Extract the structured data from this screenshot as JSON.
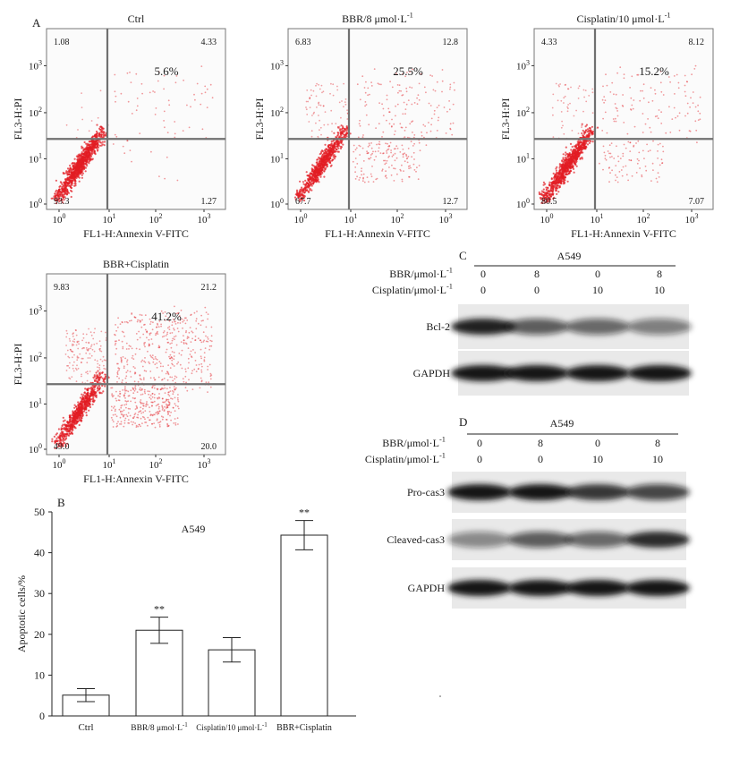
{
  "colors": {
    "dot": "#e21c24",
    "gate_line": "#707070",
    "plot_bg": "#fbfbfb",
    "band": "#141414",
    "blot_bg": "#e9e9e9"
  },
  "panel_a": {
    "label": "A",
    "plots": [
      {
        "title": "Ctrl",
        "title_sup": "",
        "q_ul": "1.08",
        "q_ur": "4.33",
        "q_ll": "93.3",
        "q_lr": "1.27",
        "percent": "5.6%",
        "xlabel": "FL1-H:Annexin V-FITC",
        "ylabel": "FL3-H:PI",
        "density": {
          "ll": 1000,
          "ur": 60,
          "ul": 10,
          "lr": 10
        }
      },
      {
        "title": "BBR/8 μmol·L",
        "title_sup": "-1",
        "q_ul": "6.83",
        "q_ur": "12.8",
        "q_ll": "67.7",
        "q_lr": "12.7",
        "percent": "25.5%",
        "xlabel": "FL1-H:Annexin V-FITC",
        "ylabel": "FL3-H:PI",
        "density": {
          "ll": 760,
          "ur": 150,
          "ul": 75,
          "lr": 140
        }
      },
      {
        "title": "Cisplatin/10 μmol·L",
        "title_sup": "-1",
        "q_ul": "4.33",
        "q_ur": "8.12",
        "q_ll": "80.5",
        "q_lr": "7.07",
        "percent": "15.2%",
        "xlabel": "FL1-H:Annexin V-FITC",
        "ylabel": "FL3-H:PI",
        "density": {
          "ll": 880,
          "ur": 120,
          "ul": 50,
          "lr": 80
        }
      },
      {
        "title": "BBR+Cisplatin",
        "title_sup": "",
        "q_ul": "9.83",
        "q_ur": "21.2",
        "q_ll": "49.0",
        "q_lr": "20.0",
        "percent": "41.2%",
        "xlabel": "FL1-H:Annexin V-FITC",
        "ylabel": "FL3-H:PI",
        "density": {
          "ll": 700,
          "ur": 420,
          "ul": 140,
          "lr": 300
        }
      }
    ],
    "x_ticks": [
      {
        "base": "10",
        "exp": "0"
      },
      {
        "base": "10",
        "exp": "1"
      },
      {
        "base": "10",
        "exp": "2"
      },
      {
        "base": "10",
        "exp": "3"
      }
    ],
    "y_ticks": [
      {
        "base": "10",
        "exp": "0"
      },
      {
        "base": "10",
        "exp": "1"
      },
      {
        "base": "10",
        "exp": "2"
      },
      {
        "base": "10",
        "exp": "3"
      }
    ]
  },
  "panel_c": {
    "label": "C",
    "cell_line": "A549",
    "row1_label": "BBR/μmol·L",
    "row1_sup": "-1",
    "row1_values": [
      "0",
      "8",
      "0",
      "8"
    ],
    "row2_label": "Cisplatin/μmol·L",
    "row2_sup": "-1",
    "row2_values": [
      "0",
      "0",
      "10",
      "10"
    ],
    "blots": [
      {
        "label": "Bcl-2",
        "intensities": [
          0.95,
          0.65,
          0.6,
          0.5
        ]
      },
      {
        "label": "GAPDH",
        "intensities": [
          1.0,
          1.0,
          1.0,
          1.0
        ]
      }
    ]
  },
  "panel_d": {
    "label": "D",
    "cell_line": "A549",
    "row1_label": "BBR/μmol·L",
    "row1_sup": "-1",
    "row1_values": [
      "0",
      "8",
      "0",
      "8"
    ],
    "row2_label": "Cisplatin/μmol·L",
    "row2_sup": "-1",
    "row2_values": [
      "0",
      "0",
      "10",
      "10"
    ],
    "blots": [
      {
        "label": "Pro-cas3",
        "intensities": [
          1.0,
          1.0,
          0.85,
          0.75
        ]
      },
      {
        "label": "Cleaved-cas3",
        "intensities": [
          0.45,
          0.65,
          0.6,
          0.9
        ]
      },
      {
        "label": "GAPDH",
        "intensities": [
          1.0,
          1.0,
          1.0,
          1.0
        ]
      }
    ]
  },
  "chart_data": {
    "type": "bar",
    "panel_label": "B",
    "title": "A549",
    "categories": [
      "Ctrl",
      "BBR/8 μmol·L",
      "Cisplatin/10 μmol·L",
      "BBR+Cisplatin"
    ],
    "category_sups": [
      "",
      "-1",
      "-1",
      ""
    ],
    "values": [
      5.1,
      21.0,
      16.2,
      44.3
    ],
    "errors": [
      1.6,
      3.2,
      3.0,
      3.6
    ],
    "significance": [
      "",
      "**",
      "",
      "**"
    ],
    "ylabel": "Apoptotic cells/%",
    "xlabel": "",
    "ylim": [
      0,
      50
    ],
    "yticks": [
      0,
      10,
      20,
      30,
      40,
      50
    ]
  }
}
